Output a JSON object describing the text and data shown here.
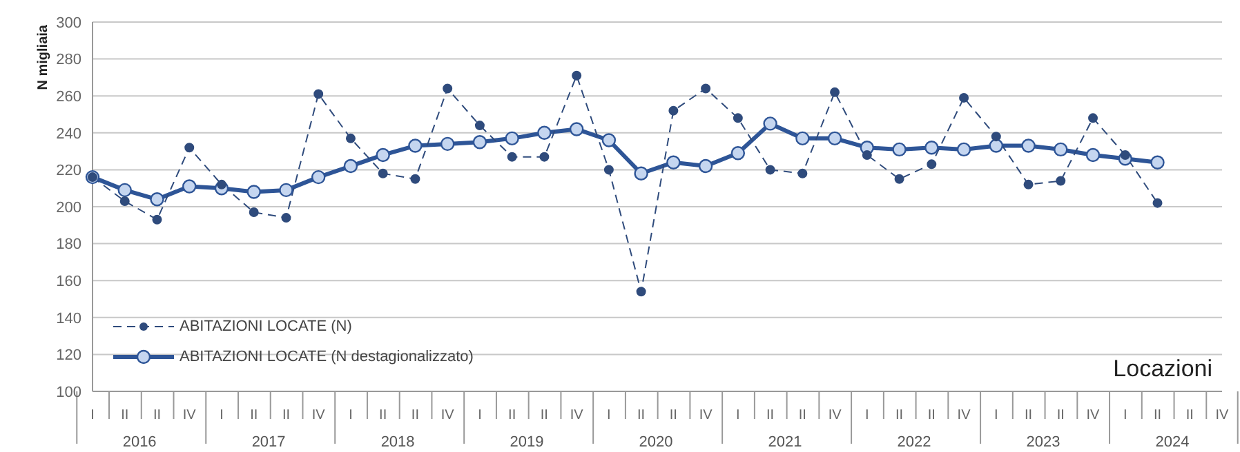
{
  "chart_data": {
    "type": "line",
    "title": "Locazioni",
    "ylabel": "N migliaia",
    "categories": [
      "I",
      "II",
      "II",
      "IV",
      "I",
      "II",
      "II",
      "IV",
      "I",
      "II",
      "II",
      "IV",
      "I",
      "II",
      "II",
      "IV",
      "I",
      "II",
      "II",
      "IV",
      "I",
      "II",
      "II",
      "IV",
      "I",
      "II",
      "II",
      "IV",
      "I",
      "II",
      "II",
      "IV",
      "I",
      "II",
      "II",
      "IV"
    ],
    "annotations": [
      "2016",
      "2017",
      "2018",
      "2019",
      "2020",
      "2021",
      "2022",
      "2023",
      "2024"
    ],
    "series": [
      {
        "name": "ABITAZIONI LOCATE (N)",
        "color": "#2f4b7c",
        "line_style": "dashed",
        "marker": "circle",
        "values": [
          216,
          203,
          193,
          232,
          212,
          197,
          194,
          261,
          237,
          218,
          215,
          264,
          244,
          227,
          227,
          271,
          220,
          154,
          252,
          264,
          248,
          220,
          218,
          262,
          228,
          215,
          223,
          259,
          238,
          212,
          214,
          248,
          228,
          202,
          null,
          null
        ]
      },
      {
        "name": "ABITAZIONI LOCATE (N destagionalizzato)",
        "color": "#2e5597",
        "line_style": "solid",
        "marker": "circle",
        "values": [
          216,
          209,
          204,
          211,
          210,
          208,
          209,
          216,
          222,
          228,
          233,
          234,
          235,
          237,
          240,
          242,
          236,
          218,
          224,
          222,
          229,
          245,
          237,
          237,
          232,
          231,
          232,
          231,
          233,
          233,
          231,
          228,
          226,
          224,
          null,
          null
        ]
      }
    ],
    "ylim": [
      100,
      300
    ],
    "yticks": [
      100,
      120,
      140,
      160,
      180,
      200,
      220,
      240,
      260,
      280,
      300
    ],
    "grid": "y",
    "legend": "bottom left"
  }
}
